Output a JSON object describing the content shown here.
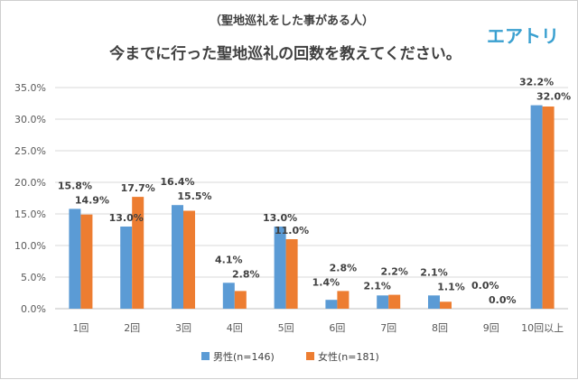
{
  "header": {
    "subtitle": "（聖地巡礼をした事がある人）",
    "title": "今までに行った聖地巡礼の回数を教えてください。",
    "brand": "エアトリ",
    "brand_color": "#3aa0d0"
  },
  "chart_data": {
    "type": "bar",
    "categories": [
      "1回",
      "2回",
      "3回",
      "4回",
      "5回",
      "6回",
      "7回",
      "8回",
      "9回",
      "10回以上"
    ],
    "series": [
      {
        "name": "男性(n=146)",
        "color": "#5b9bd5",
        "values": [
          15.8,
          13.0,
          16.4,
          4.1,
          13.0,
          1.4,
          2.1,
          2.1,
          0.0,
          32.2
        ]
      },
      {
        "name": "女性(n=181)",
        "color": "#ed7d31",
        "values": [
          14.9,
          17.7,
          15.5,
          2.8,
          11.0,
          2.8,
          2.2,
          1.1,
          0.0,
          32.0
        ]
      }
    ],
    "yticks": [
      "0.0%",
      "5.0%",
      "10.0%",
      "15.0%",
      "20.0%",
      "25.0%",
      "30.0%",
      "35.0%"
    ],
    "ylim": [
      0,
      35
    ],
    "grid": true,
    "legend_position": "bottom",
    "value_suffix": "%"
  }
}
